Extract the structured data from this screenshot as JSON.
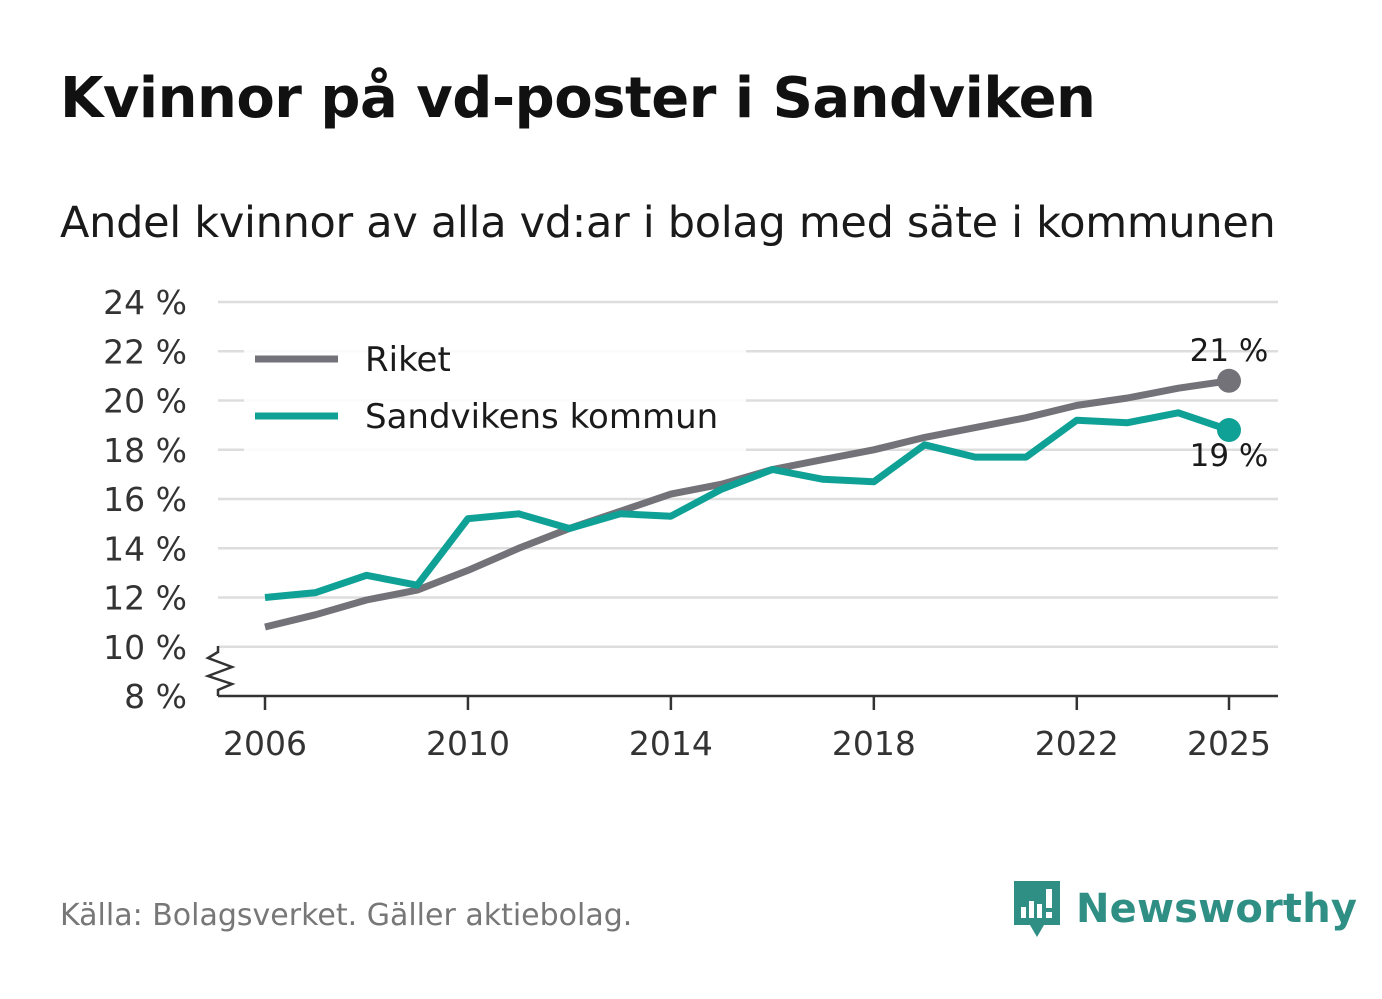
{
  "title": "Kvinnor på vd-poster i Sandviken",
  "subtitle": "Andel kvinnor av alla vd:ar i bolag med säte i kommunen",
  "source": "Källa: Bolagsverket. Gäller aktiebolag.",
  "brand": {
    "name": "Newsworthy",
    "icon": "newsworthy-logo-icon"
  },
  "colors": {
    "riket": "#737278",
    "sandviken": "#10a196",
    "grid": "#dddddd",
    "axis": "#333333",
    "brand": "#2f8f85"
  },
  "chart_data": {
    "type": "line",
    "title": "Kvinnor på vd-poster i Sandviken",
    "xlabel": "",
    "ylabel": "",
    "x": [
      2006,
      2007,
      2008,
      2009,
      2010,
      2011,
      2012,
      2013,
      2014,
      2015,
      2016,
      2017,
      2018,
      2019,
      2020,
      2021,
      2022,
      2023,
      2024,
      2025
    ],
    "ylim": [
      8,
      24
    ],
    "y_axis_break": true,
    "yticks": [
      8,
      10,
      12,
      14,
      16,
      18,
      20,
      22,
      24
    ],
    "ytick_labels": [
      "8 %",
      "10 %",
      "12 %",
      "14 %",
      "16 %",
      "18 %",
      "20 %",
      "22 %",
      "24 %"
    ],
    "xticks": [
      2006,
      2010,
      2014,
      2018,
      2022,
      2025
    ],
    "xtick_labels": [
      "2006",
      "2010",
      "2014",
      "2018",
      "2022",
      "2025"
    ],
    "grid": true,
    "legend_position": "top-left",
    "series": [
      {
        "name": "Riket",
        "color": "#737278",
        "values": [
          10.8,
          11.3,
          11.9,
          12.3,
          13.1,
          14.0,
          14.8,
          15.5,
          16.2,
          16.6,
          17.2,
          17.6,
          18.0,
          18.5,
          18.9,
          19.3,
          19.8,
          20.1,
          20.5,
          20.8
        ],
        "end_label": "21 %"
      },
      {
        "name": "Sandvikens kommun",
        "color": "#10a196",
        "values": [
          12.0,
          12.2,
          12.9,
          12.5,
          15.2,
          15.4,
          14.8,
          15.4,
          15.3,
          16.4,
          17.2,
          16.8,
          16.7,
          18.2,
          17.7,
          17.7,
          19.2,
          19.1,
          19.5,
          18.8
        ],
        "end_label": "19 %"
      }
    ]
  }
}
